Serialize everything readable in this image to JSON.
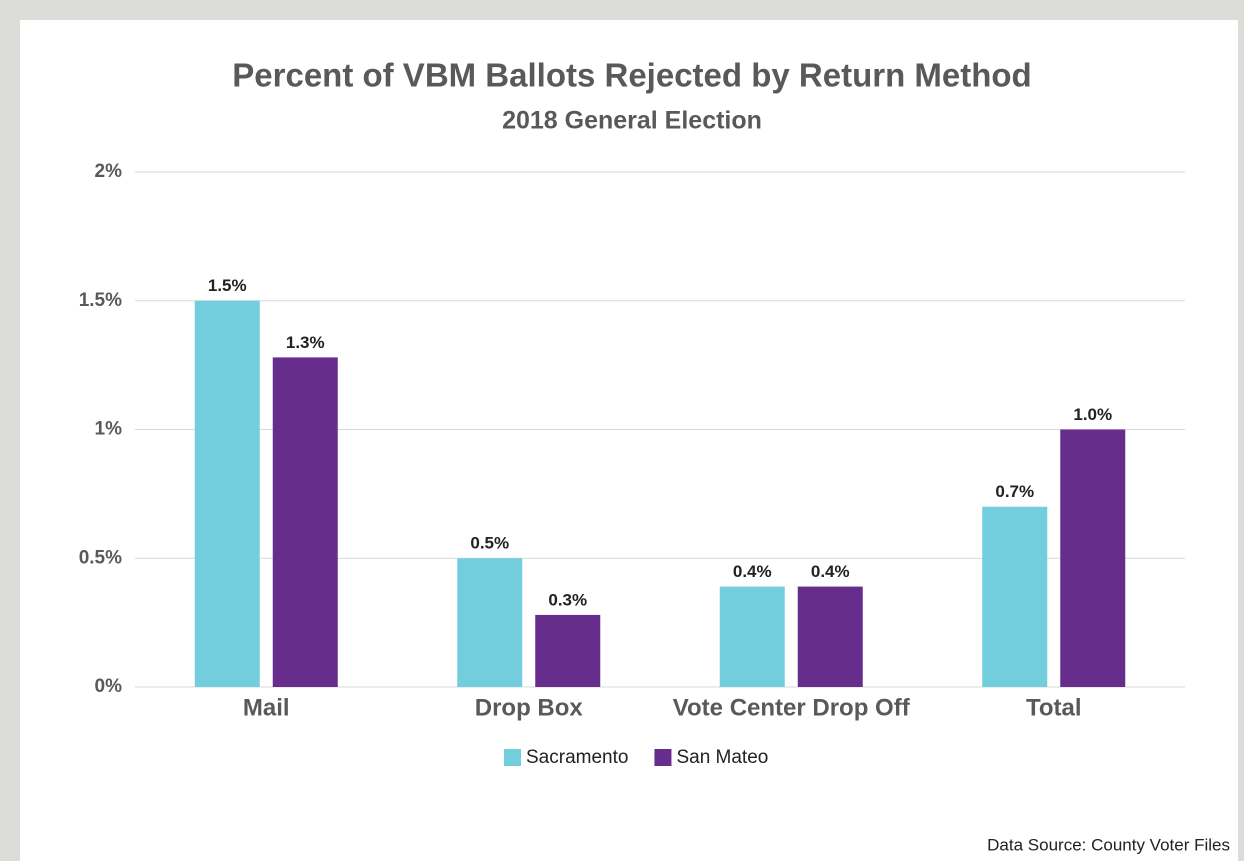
{
  "chart_data": {
    "type": "bar",
    "title": "Percent of VBM Ballots Rejected by Return Method",
    "subtitle": "2018 General Election",
    "categories": [
      "Mail",
      "Drop Box",
      "Vote Center Drop Off",
      "Total"
    ],
    "series": [
      {
        "name": "Sacramento",
        "color": "#72cedd",
        "values": [
          1.5,
          0.5,
          0.39,
          0.7
        ],
        "value_labels": [
          "1.5%",
          "0.5%",
          "0.4%",
          "0.7%"
        ]
      },
      {
        "name": "San Mateo",
        "color": "#662d8c",
        "values": [
          1.28,
          0.28,
          0.39,
          1.0
        ],
        "value_labels": [
          "1.3%",
          "0.3%",
          "0.4%",
          "1.0%"
        ]
      }
    ],
    "ylim": [
      0,
      2
    ],
    "yticks": [
      {
        "value": 0,
        "label": "0%"
      },
      {
        "value": 0.5,
        "label": "0.5%"
      },
      {
        "value": 1,
        "label": "1%"
      },
      {
        "value": 1.5,
        "label": "1.5%"
      },
      {
        "value": 2,
        "label": "2%"
      }
    ],
    "grid": true,
    "legend": "bottom",
    "source": "Data Source: County Voter Files"
  }
}
